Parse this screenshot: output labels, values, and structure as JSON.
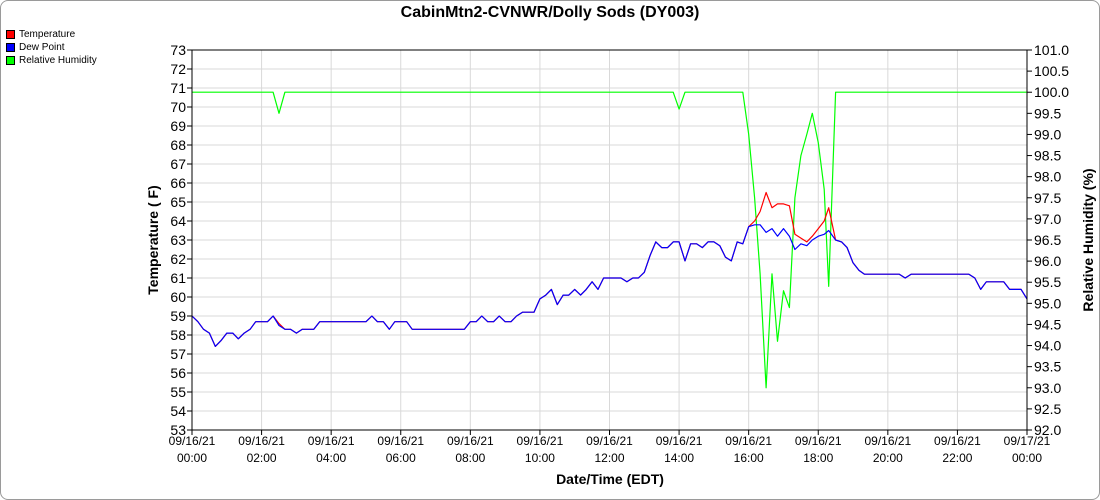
{
  "chart_data": {
    "type": "line",
    "title": "CabinMtn2-CVNWR/Dolly Sods (DY003)",
    "xlabel": "Date/Time (EDT)",
    "ylabel": "Temperature ( F)",
    "y2label": "Relative Humidity (%)",
    "x_ticks": [
      {
        "h": 0,
        "date": "09/16/21",
        "time": "00:00"
      },
      {
        "h": 2,
        "date": "09/16/21",
        "time": "02:00"
      },
      {
        "h": 4,
        "date": "09/16/21",
        "time": "04:00"
      },
      {
        "h": 6,
        "date": "09/16/21",
        "time": "06:00"
      },
      {
        "h": 8,
        "date": "09/16/21",
        "time": "08:00"
      },
      {
        "h": 10,
        "date": "09/16/21",
        "time": "10:00"
      },
      {
        "h": 12,
        "date": "09/16/21",
        "time": "12:00"
      },
      {
        "h": 14,
        "date": "09/16/21",
        "time": "14:00"
      },
      {
        "h": 16,
        "date": "09/16/21",
        "time": "16:00"
      },
      {
        "h": 18,
        "date": "09/16/21",
        "time": "18:00"
      },
      {
        "h": 20,
        "date": "09/16/21",
        "time": "20:00"
      },
      {
        "h": 22,
        "date": "09/16/21",
        "time": "22:00"
      },
      {
        "h": 24,
        "date": "09/17/21",
        "time": "00:00"
      }
    ],
    "x_range_hours": [
      0,
      24
    ],
    "ylim": [
      53,
      73
    ],
    "y_ticks": [
      53,
      54,
      55,
      56,
      57,
      58,
      59,
      60,
      61,
      62,
      63,
      64,
      65,
      66,
      67,
      68,
      69,
      70,
      71,
      72,
      73
    ],
    "y2lim": [
      92.0,
      101.0
    ],
    "y2_ticks": [
      "92.0",
      "92.5",
      "93.0",
      "93.5",
      "94.0",
      "94.5",
      "95.0",
      "95.5",
      "96.0",
      "96.5",
      "97.0",
      "97.5",
      "98.0",
      "98.5",
      "99.0",
      "99.5",
      "100.0",
      "100.5",
      "101.0"
    ],
    "grid": true,
    "legend": "top-left",
    "series": [
      {
        "name": "Temperature",
        "axis": "left",
        "color": "#ff0000",
        "points": [
          [
            0,
            59.0
          ],
          [
            0.17,
            58.7
          ],
          [
            0.33,
            58.3
          ],
          [
            0.5,
            58.1
          ],
          [
            0.67,
            57.4
          ],
          [
            0.83,
            57.7
          ],
          [
            1.0,
            58.1
          ],
          [
            1.17,
            58.1
          ],
          [
            1.33,
            57.8
          ],
          [
            1.5,
            58.1
          ],
          [
            1.67,
            58.3
          ],
          [
            1.83,
            58.7
          ],
          [
            2.0,
            58.7
          ],
          [
            2.17,
            58.7
          ],
          [
            2.33,
            59.0
          ],
          [
            2.5,
            58.6
          ],
          [
            2.67,
            58.3
          ],
          [
            2.83,
            58.3
          ],
          [
            3.0,
            58.1
          ],
          [
            3.17,
            58.3
          ],
          [
            3.5,
            58.3
          ],
          [
            3.67,
            58.7
          ],
          [
            5.0,
            58.7
          ],
          [
            5.17,
            59.0
          ],
          [
            5.33,
            58.7
          ],
          [
            5.5,
            58.7
          ],
          [
            5.67,
            58.3
          ],
          [
            5.83,
            58.7
          ],
          [
            6.17,
            58.7
          ],
          [
            6.33,
            58.3
          ],
          [
            7.83,
            58.3
          ],
          [
            8.0,
            58.7
          ],
          [
            8.17,
            58.7
          ],
          [
            8.33,
            59.0
          ],
          [
            8.5,
            58.7
          ],
          [
            8.67,
            58.7
          ],
          [
            8.83,
            59.0
          ],
          [
            9.0,
            58.7
          ],
          [
            9.17,
            58.7
          ],
          [
            9.33,
            59.0
          ],
          [
            9.5,
            59.2
          ],
          [
            9.83,
            59.2
          ],
          [
            10.0,
            59.9
          ],
          [
            10.17,
            60.1
          ],
          [
            10.33,
            60.4
          ],
          [
            10.5,
            59.6
          ],
          [
            10.67,
            60.1
          ],
          [
            10.83,
            60.1
          ],
          [
            11.0,
            60.4
          ],
          [
            11.17,
            60.1
          ],
          [
            11.33,
            60.4
          ],
          [
            11.5,
            60.8
          ],
          [
            11.67,
            60.4
          ],
          [
            11.83,
            61.0
          ],
          [
            12.33,
            61.0
          ],
          [
            12.5,
            60.8
          ],
          [
            12.67,
            61.0
          ],
          [
            12.83,
            61.0
          ],
          [
            13.0,
            61.3
          ],
          [
            13.17,
            62.2
          ],
          [
            13.33,
            62.9
          ],
          [
            13.5,
            62.6
          ],
          [
            13.67,
            62.6
          ],
          [
            13.83,
            62.9
          ],
          [
            14.0,
            62.9
          ],
          [
            14.17,
            61.9
          ],
          [
            14.33,
            62.8
          ],
          [
            14.5,
            62.8
          ],
          [
            14.67,
            62.6
          ],
          [
            14.83,
            62.9
          ],
          [
            15.0,
            62.9
          ],
          [
            15.17,
            62.7
          ],
          [
            15.33,
            62.1
          ],
          [
            15.5,
            61.9
          ],
          [
            15.67,
            62.9
          ],
          [
            15.83,
            62.8
          ],
          [
            16.0,
            63.7
          ],
          [
            16.17,
            64.0
          ],
          [
            16.33,
            64.5
          ],
          [
            16.5,
            65.5
          ],
          [
            16.67,
            64.7
          ],
          [
            16.83,
            64.9
          ],
          [
            17.0,
            64.9
          ],
          [
            17.17,
            64.8
          ],
          [
            17.33,
            63.3
          ],
          [
            17.5,
            63.1
          ],
          [
            17.67,
            62.9
          ],
          [
            17.83,
            63.2
          ],
          [
            18.0,
            63.6
          ],
          [
            18.17,
            64.0
          ],
          [
            18.3,
            64.7
          ],
          [
            18.5,
            63.0
          ],
          [
            18.67,
            62.9
          ],
          [
            18.83,
            62.6
          ],
          [
            19.0,
            61.8
          ],
          [
            19.17,
            61.4
          ],
          [
            19.33,
            61.2
          ],
          [
            20.33,
            61.2
          ],
          [
            20.5,
            61.0
          ],
          [
            20.67,
            61.2
          ],
          [
            22.33,
            61.2
          ],
          [
            22.5,
            61.0
          ],
          [
            22.67,
            60.4
          ],
          [
            22.83,
            60.8
          ],
          [
            23.33,
            60.8
          ],
          [
            23.5,
            60.4
          ],
          [
            23.83,
            60.4
          ],
          [
            24.0,
            59.9
          ]
        ]
      },
      {
        "name": "Dew Point",
        "axis": "left",
        "color": "#0000ff",
        "points": [
          [
            0,
            59.0
          ],
          [
            0.17,
            58.7
          ],
          [
            0.33,
            58.3
          ],
          [
            0.5,
            58.1
          ],
          [
            0.67,
            57.4
          ],
          [
            0.83,
            57.7
          ],
          [
            1.0,
            58.1
          ],
          [
            1.17,
            58.1
          ],
          [
            1.33,
            57.8
          ],
          [
            1.5,
            58.1
          ],
          [
            1.67,
            58.3
          ],
          [
            1.83,
            58.7
          ],
          [
            2.0,
            58.7
          ],
          [
            2.17,
            58.7
          ],
          [
            2.33,
            59.0
          ],
          [
            2.5,
            58.5
          ],
          [
            2.67,
            58.3
          ],
          [
            2.83,
            58.3
          ],
          [
            3.0,
            58.1
          ],
          [
            3.17,
            58.3
          ],
          [
            3.5,
            58.3
          ],
          [
            3.67,
            58.7
          ],
          [
            5.0,
            58.7
          ],
          [
            5.17,
            59.0
          ],
          [
            5.33,
            58.7
          ],
          [
            5.5,
            58.7
          ],
          [
            5.67,
            58.3
          ],
          [
            5.83,
            58.7
          ],
          [
            6.17,
            58.7
          ],
          [
            6.33,
            58.3
          ],
          [
            7.83,
            58.3
          ],
          [
            8.0,
            58.7
          ],
          [
            8.17,
            58.7
          ],
          [
            8.33,
            59.0
          ],
          [
            8.5,
            58.7
          ],
          [
            8.67,
            58.7
          ],
          [
            8.83,
            59.0
          ],
          [
            9.0,
            58.7
          ],
          [
            9.17,
            58.7
          ],
          [
            9.33,
            59.0
          ],
          [
            9.5,
            59.2
          ],
          [
            9.83,
            59.2
          ],
          [
            10.0,
            59.9
          ],
          [
            10.17,
            60.1
          ],
          [
            10.33,
            60.4
          ],
          [
            10.5,
            59.6
          ],
          [
            10.67,
            60.1
          ],
          [
            10.83,
            60.1
          ],
          [
            11.0,
            60.4
          ],
          [
            11.17,
            60.1
          ],
          [
            11.33,
            60.4
          ],
          [
            11.5,
            60.8
          ],
          [
            11.67,
            60.4
          ],
          [
            11.83,
            61.0
          ],
          [
            12.33,
            61.0
          ],
          [
            12.5,
            60.8
          ],
          [
            12.67,
            61.0
          ],
          [
            12.83,
            61.0
          ],
          [
            13.0,
            61.3
          ],
          [
            13.17,
            62.2
          ],
          [
            13.33,
            62.9
          ],
          [
            13.5,
            62.6
          ],
          [
            13.67,
            62.6
          ],
          [
            13.83,
            62.9
          ],
          [
            14.0,
            62.9
          ],
          [
            14.17,
            61.9
          ],
          [
            14.33,
            62.8
          ],
          [
            14.5,
            62.8
          ],
          [
            14.67,
            62.6
          ],
          [
            14.83,
            62.9
          ],
          [
            15.0,
            62.9
          ],
          [
            15.17,
            62.7
          ],
          [
            15.33,
            62.1
          ],
          [
            15.5,
            61.9
          ],
          [
            15.67,
            62.9
          ],
          [
            15.83,
            62.8
          ],
          [
            16.0,
            63.7
          ],
          [
            16.17,
            63.8
          ],
          [
            16.33,
            63.8
          ],
          [
            16.5,
            63.4
          ],
          [
            16.67,
            63.6
          ],
          [
            16.83,
            63.2
          ],
          [
            17.0,
            63.6
          ],
          [
            17.17,
            63.2
          ],
          [
            17.33,
            62.5
          ],
          [
            17.5,
            62.8
          ],
          [
            17.67,
            62.7
          ],
          [
            17.83,
            63.0
          ],
          [
            18.0,
            63.2
          ],
          [
            18.17,
            63.3
          ],
          [
            18.3,
            63.5
          ],
          [
            18.5,
            63.0
          ],
          [
            18.67,
            62.9
          ],
          [
            18.83,
            62.6
          ],
          [
            19.0,
            61.8
          ],
          [
            19.17,
            61.4
          ],
          [
            19.33,
            61.2
          ],
          [
            20.33,
            61.2
          ],
          [
            20.5,
            61.0
          ],
          [
            20.67,
            61.2
          ],
          [
            22.33,
            61.2
          ],
          [
            22.5,
            61.0
          ],
          [
            22.67,
            60.4
          ],
          [
            22.83,
            60.8
          ],
          [
            23.33,
            60.8
          ],
          [
            23.5,
            60.4
          ],
          [
            23.83,
            60.4
          ],
          [
            24.0,
            59.9
          ]
        ]
      },
      {
        "name": "Relative Humidity",
        "axis": "right",
        "color": "#00ff00",
        "points": [
          [
            0,
            100.0
          ],
          [
            2.33,
            100.0
          ],
          [
            2.5,
            99.5
          ],
          [
            2.67,
            100.0
          ],
          [
            13.83,
            100.0
          ],
          [
            14.0,
            99.6
          ],
          [
            14.17,
            100.0
          ],
          [
            15.83,
            100.0
          ],
          [
            16.0,
            99.0
          ],
          [
            16.17,
            97.5
          ],
          [
            16.33,
            95.7
          ],
          [
            16.5,
            93.0
          ],
          [
            16.67,
            95.7
          ],
          [
            16.83,
            94.1
          ],
          [
            17.0,
            95.3
          ],
          [
            17.17,
            94.9
          ],
          [
            17.33,
            97.5
          ],
          [
            17.5,
            98.5
          ],
          [
            17.67,
            99.0
          ],
          [
            17.83,
            99.5
          ],
          [
            18.0,
            98.8
          ],
          [
            18.17,
            97.7
          ],
          [
            18.3,
            95.4
          ],
          [
            18.5,
            100.0
          ],
          [
            24.0,
            100.0
          ]
        ]
      }
    ]
  }
}
